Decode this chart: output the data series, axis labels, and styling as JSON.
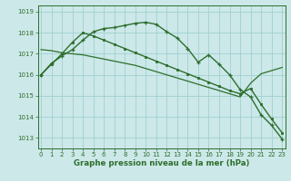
{
  "line1": {
    "x": [
      0,
      1,
      2,
      3,
      4,
      5,
      6,
      7,
      8,
      9,
      10,
      11,
      12,
      13,
      14,
      15,
      16,
      17,
      18,
      19,
      20,
      21,
      22,
      23
    ],
    "y": [
      1016.0,
      1016.55,
      1016.9,
      1017.2,
      1017.65,
      1018.05,
      1018.2,
      1018.25,
      1018.35,
      1018.45,
      1018.5,
      1018.4,
      1018.05,
      1017.75,
      1017.25,
      1016.6,
      1016.95,
      1016.5,
      1016.0,
      1015.3,
      1014.95,
      1014.1,
      1013.6,
      1012.95
    ],
    "color": "#2d6e2d",
    "linewidth": 1.0,
    "marker": "+"
  },
  "line2": {
    "x": [
      0,
      1,
      2,
      3,
      4,
      5,
      6,
      7,
      8,
      9,
      10,
      11,
      12,
      13,
      14,
      15,
      16,
      17,
      18,
      19,
      20,
      21,
      22,
      23
    ],
    "y": [
      1016.0,
      1016.5,
      1017.0,
      1017.55,
      1018.0,
      1017.85,
      1017.65,
      1017.45,
      1017.25,
      1017.05,
      1016.85,
      1016.65,
      1016.45,
      1016.25,
      1016.05,
      1015.85,
      1015.65,
      1015.45,
      1015.25,
      1015.1,
      1015.35,
      1014.6,
      1013.9,
      1013.25
    ],
    "color": "#2d6e2d",
    "linewidth": 1.0,
    "marker": "s"
  },
  "line3": {
    "x": [
      0,
      1,
      2,
      3,
      4,
      5,
      6,
      7,
      8,
      9,
      10,
      11,
      12,
      13,
      14,
      15,
      16,
      17,
      18,
      19,
      20,
      21,
      22,
      23
    ],
    "y": [
      1017.2,
      1017.15,
      1017.05,
      1017.0,
      1016.95,
      1016.85,
      1016.75,
      1016.65,
      1016.55,
      1016.45,
      1016.3,
      1016.15,
      1016.0,
      1015.85,
      1015.7,
      1015.55,
      1015.4,
      1015.25,
      1015.1,
      1014.95,
      1015.6,
      1016.05,
      1016.2,
      1016.35
    ],
    "color": "#2d6e2d",
    "linewidth": 0.9,
    "marker": null
  },
  "bg_color": "#cce8e8",
  "grid_color": "#99cccc",
  "axis_color": "#2d6e2d",
  "xlabel": "Graphe pression niveau de la mer (hPa)",
  "ylim": [
    1012.5,
    1019.3
  ],
  "xlim": [
    -0.3,
    23.3
  ],
  "yticks": [
    1013,
    1014,
    1015,
    1016,
    1017,
    1018,
    1019
  ],
  "xticks": [
    0,
    1,
    2,
    3,
    4,
    5,
    6,
    7,
    8,
    9,
    10,
    11,
    12,
    13,
    14,
    15,
    16,
    17,
    18,
    19,
    20,
    21,
    22,
    23
  ],
  "tick_fontsize": 5.0,
  "xlabel_fontsize": 6.2
}
